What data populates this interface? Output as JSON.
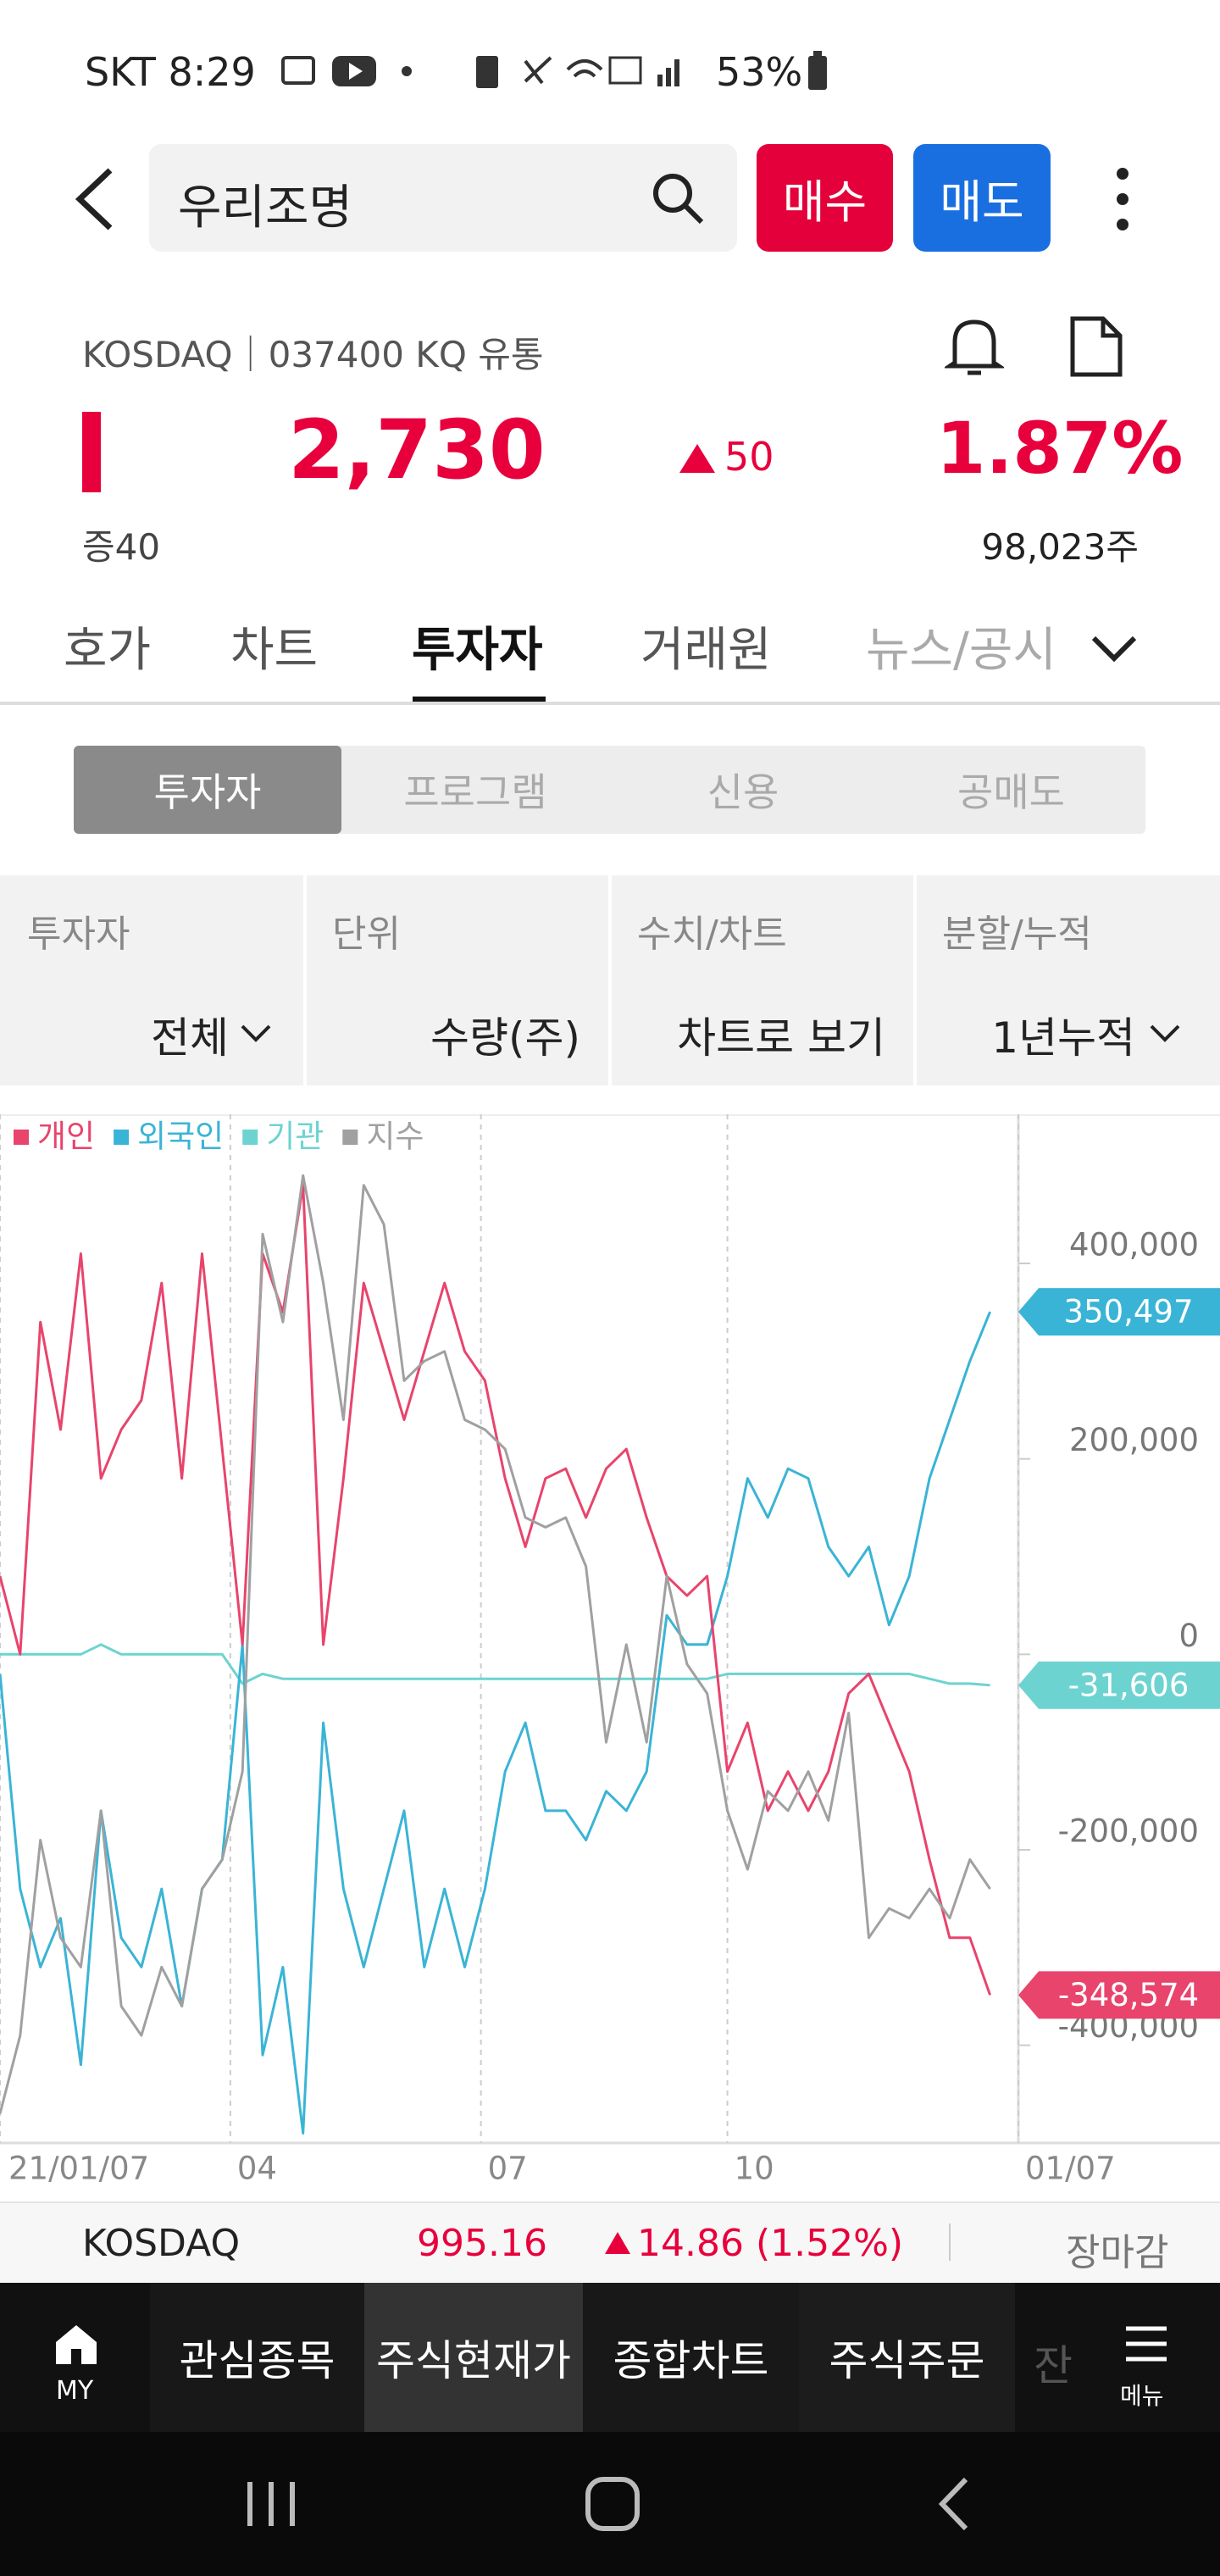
{
  "status_bar": {
    "carrier_time": "SKT 8:29",
    "battery": "53%"
  },
  "header": {
    "search": "우리조명",
    "buy": "매수",
    "sell": "매도"
  },
  "stock": {
    "market_info": "KOSDAQ｜037400 KQ 유통",
    "price": "2,730",
    "change": "50",
    "change_rate": "1.87%",
    "sub_change": "증40",
    "volume": "98,023주"
  },
  "tabs": [
    "호가",
    "차트",
    "투자자",
    "거래원",
    "뉴스/공시"
  ],
  "segments": [
    "투자자",
    "프로그램",
    "신용",
    "공매도"
  ],
  "filters": [
    {
      "label": "투자자",
      "value": "전체"
    },
    {
      "label": "단위",
      "value": "수량(주)"
    },
    {
      "label": "수치/차트",
      "value": "차트로 보기"
    },
    {
      "label": "분할/누적",
      "value": "1년누적"
    }
  ],
  "chart_data": {
    "type": "line",
    "x": [
      0,
      5,
      10,
      15,
      20,
      25,
      30,
      35,
      40,
      45,
      50,
      55,
      60,
      65,
      70,
      75,
      80,
      85,
      90,
      95,
      100,
      105,
      110,
      115,
      120,
      125,
      130,
      135,
      140,
      145,
      150,
      155,
      160,
      165,
      170,
      175,
      180,
      185,
      190,
      195,
      200,
      205,
      210,
      215,
      220,
      225,
      230,
      235,
      240,
      245
    ],
    "xlim": [
      0,
      252
    ],
    "xticks": [
      {
        "value": 0,
        "label": "21/01/07"
      },
      {
        "value": 57,
        "label": "04"
      },
      {
        "value": 119,
        "label": "07"
      },
      {
        "value": 180,
        "label": "10"
      },
      {
        "value": 252,
        "label": "01/07"
      }
    ],
    "ylim": [
      -500000,
      550000
    ],
    "yticks": [
      {
        "value": 400000,
        "label": "400,000"
      },
      {
        "value": 200000,
        "label": "200,000"
      },
      0,
      {
        "value": -200000,
        "label": "-200,000"
      },
      {
        "value": -400000,
        "label": "-400,000"
      }
    ],
    "series": [
      {
        "name": "개인",
        "color": "#e8446c",
        "last_label": "-348,574",
        "values": [
          80000,
          0,
          340000,
          230000,
          410000,
          180000,
          230000,
          260000,
          380000,
          180000,
          410000,
          210000,
          10000,
          410000,
          350000,
          480000,
          10000,
          180000,
          380000,
          310000,
          240000,
          310000,
          380000,
          310000,
          280000,
          180000,
          110000,
          180000,
          190000,
          140000,
          190000,
          210000,
          140000,
          80000,
          60000,
          80000,
          -120000,
          -70000,
          -160000,
          -120000,
          -160000,
          -120000,
          -40000,
          -20000,
          -70000,
          -120000,
          -210000,
          -290000,
          -290000,
          -348574
        ]
      },
      {
        "name": "외국인",
        "color": "#3ab4d6",
        "last_label": "350,497",
        "values": [
          -20000,
          -240000,
          -320000,
          -270000,
          -420000,
          -160000,
          -290000,
          -320000,
          -240000,
          -360000,
          -240000,
          -210000,
          10000,
          -410000,
          -320000,
          -490000,
          -70000,
          -240000,
          -320000,
          -240000,
          -160000,
          -320000,
          -240000,
          -320000,
          -240000,
          -120000,
          -70000,
          -160000,
          -160000,
          -190000,
          -140000,
          -160000,
          -120000,
          40000,
          10000,
          10000,
          80000,
          180000,
          140000,
          190000,
          180000,
          110000,
          80000,
          110000,
          30000,
          80000,
          180000,
          240000,
          300000,
          350497
        ]
      },
      {
        "name": "기관",
        "color": "#6dd3d0",
        "last_label": "-31,606",
        "values": [
          0,
          0,
          0,
          0,
          0,
          10000,
          0,
          0,
          0,
          0,
          0,
          0,
          -30000,
          -20000,
          -25000,
          -25000,
          -25000,
          -25000,
          -25000,
          -25000,
          -25000,
          -25000,
          -25000,
          -25000,
          -25000,
          -25000,
          -25000,
          -25000,
          -25000,
          -25000,
          -25000,
          -25000,
          -25000,
          -25000,
          -25000,
          -25000,
          -20000,
          -20000,
          -20000,
          -20000,
          -20000,
          -20000,
          -20000,
          -20000,
          -20000,
          -20000,
          -25000,
          -30000,
          -30000,
          -31606
        ]
      },
      {
        "name": "지수",
        "color": "#a0a0a0",
        "values": [
          -470000,
          -390000,
          -190000,
          -290000,
          -320000,
          -160000,
          -360000,
          -390000,
          -320000,
          -360000,
          -240000,
          -210000,
          -120000,
          430000,
          340000,
          490000,
          380000,
          240000,
          480000,
          440000,
          280000,
          300000,
          310000,
          240000,
          230000,
          210000,
          140000,
          130000,
          140000,
          90000,
          -90000,
          10000,
          -90000,
          80000,
          -10000,
          -40000,
          -160000,
          -220000,
          -140000,
          -160000,
          -120000,
          -170000,
          -60000,
          -290000,
          -260000,
          -270000,
          -240000,
          -270000,
          -210000,
          -240000
        ]
      }
    ]
  },
  "index_bar": {
    "name": "KOSDAQ",
    "value": "995.16",
    "change": "14.86 (1.52%)",
    "status": "장마감"
  },
  "bottom_nav": {
    "my": "MY",
    "items": [
      "관심종목",
      "주식현재가",
      "종합차트",
      "주식주문",
      "잔"
    ],
    "menu": "메뉴"
  }
}
